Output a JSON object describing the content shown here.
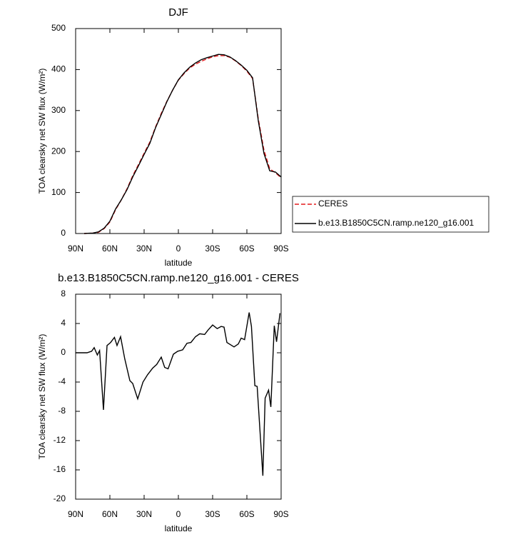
{
  "chart_data": [
    {
      "type": "line",
      "title": "DJF",
      "xlabel": "latitude",
      "ylabel": "TOA clearsky net SW flux (W/m²)",
      "x": [
        82.5,
        75,
        70,
        65,
        60,
        55,
        50,
        45,
        40,
        35,
        30,
        25,
        20,
        15,
        10,
        5,
        0,
        -5,
        -10,
        -15,
        -20,
        -25,
        -30,
        -35,
        -40,
        -45,
        -50,
        -55,
        -60,
        -65,
        -70,
        -75,
        -80,
        -85,
        -90
      ],
      "series": [
        {
          "name": "CERES",
          "color": "#e41a1c",
          "linestyle": "dashed",
          "values": [
            0,
            1,
            3,
            12,
            28,
            58,
            82,
            109,
            141,
            168,
            196,
            223,
            260,
            293,
            323,
            350,
            374,
            390,
            404,
            413,
            420,
            426,
            431,
            434,
            434,
            430,
            421,
            410,
            396,
            378,
            280,
            203,
            158,
            148,
            136
          ]
        },
        {
          "name": "b.e13.B1850C5CN.ramp.ne120_g16.001",
          "color": "#000000",
          "linestyle": "solid",
          "values": [
            0,
            1,
            4,
            13,
            30,
            60,
            82,
            107,
            138,
            165,
            193,
            220,
            258,
            290,
            322,
            350,
            375,
            392,
            406,
            416,
            424,
            429,
            433,
            437,
            436,
            431,
            422,
            411,
            398,
            380,
            275,
            195,
            153,
            150,
            138
          ]
        }
      ],
      "xlim": [
        90,
        -90
      ],
      "xticks": [
        {
          "value": 90,
          "label": "90N"
        },
        {
          "value": 60,
          "label": "60N"
        },
        {
          "value": 30,
          "label": "30N"
        },
        0,
        {
          "value": -30,
          "label": "30S"
        },
        {
          "value": -60,
          "label": "60S"
        },
        {
          "value": -90,
          "label": "90S"
        }
      ],
      "ylim": [
        0,
        500
      ],
      "yticks": [
        0,
        100,
        200,
        300,
        400,
        500
      ],
      "legend": "right"
    },
    {
      "type": "line",
      "title": "b.e13.B1850C5CN.ramp.ne120_g16.001 - CERES",
      "xlabel": "latitude",
      "ylabel": "TOA clearsky net SW flux (W/m²)",
      "x": [
        90,
        80,
        76,
        73.75,
        71,
        69,
        65.6,
        62.5,
        59.4,
        56,
        53.75,
        50.6,
        47,
        42.5,
        40,
        35.6,
        31,
        27,
        22.5,
        19,
        15,
        12,
        9,
        4.4,
        0.6,
        -3.75,
        -7.5,
        -11,
        -15,
        -18.75,
        -23,
        -26,
        -30,
        -34,
        -37.5,
        -40,
        -42.5,
        -45.6,
        -48.75,
        -52.5,
        -55,
        -58,
        -62,
        -64,
        -67,
        -69,
        -74,
        -76,
        -79,
        -81,
        -84,
        -86,
        -89
      ],
      "series": [
        {
          "color": "#000000",
          "linestyle": "solid",
          "values": [
            0,
            0,
            0.2,
            0.7,
            -0.3,
            0.3,
            -7.8,
            1,
            1.4,
            2.1,
            1,
            2.2,
            -0.8,
            -3.8,
            -4.2,
            -6.3,
            -4,
            -3,
            -2.1,
            -1.6,
            -0.6,
            -2,
            -2.2,
            -0.2,
            0.2,
            0.4,
            1.3,
            1.4,
            2.2,
            2.6,
            2.5,
            3.1,
            3.8,
            3.3,
            3.6,
            3.5,
            1.4,
            1.1,
            0.8,
            1.2,
            2,
            1.8,
            5.5,
            3.6,
            -4.5,
            -4.6,
            -16.8,
            -6.2,
            -5.1,
            -7.4,
            3.7,
            1.5,
            5.4
          ]
        }
      ],
      "xlim": [
        90,
        -90
      ],
      "xticks": [
        {
          "value": 90,
          "label": "90N"
        },
        {
          "value": 60,
          "label": "60N"
        },
        {
          "value": 30,
          "label": "30N"
        },
        0,
        {
          "value": -30,
          "label": "30S"
        },
        {
          "value": -60,
          "label": "60S"
        },
        {
          "value": -90,
          "label": "90S"
        }
      ],
      "ylim": [
        -20,
        8
      ],
      "yticks": [
        -20,
        -16,
        -12,
        -8,
        -4,
        0,
        4,
        8
      ]
    }
  ]
}
